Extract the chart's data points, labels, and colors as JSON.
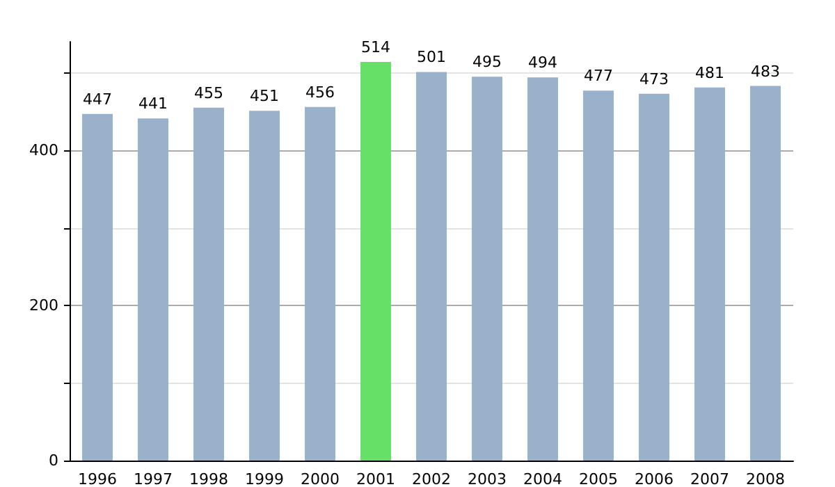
{
  "chart_data": {
    "type": "bar",
    "categories": [
      "1996",
      "1997",
      "1998",
      "1999",
      "2000",
      "2001",
      "2002",
      "2003",
      "2004",
      "2005",
      "2006",
      "2007",
      "2008"
    ],
    "values": [
      447,
      441,
      455,
      451,
      456,
      514,
      501,
      495,
      494,
      477,
      473,
      481,
      483
    ],
    "colors": [
      "#9ab1cb",
      "#9ab1cb",
      "#9ab1cb",
      "#9ab1cb",
      "#9ab1cb",
      "#66e066",
      "#9ab1cb",
      "#9ab1cb",
      "#9ab1cb",
      "#9ab1cb",
      "#9ab1cb",
      "#9ab1cb",
      "#9ab1cb"
    ],
    "ylim": [
      0,
      540
    ],
    "yticks": [
      0,
      {
        "value": 100,
        "label": null
      },
      200,
      {
        "value": 300,
        "label": null
      },
      400,
      {
        "value": 500,
        "label": null
      }
    ],
    "grid": "y",
    "data_labels": true
  }
}
